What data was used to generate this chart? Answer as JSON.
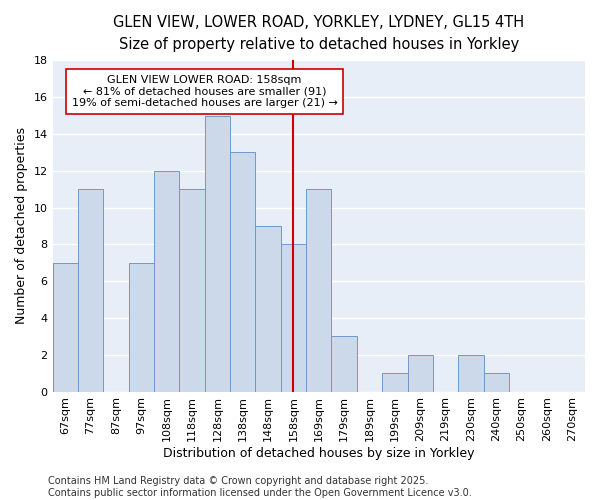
{
  "title_line1": "GLEN VIEW, LOWER ROAD, YORKLEY, LYDNEY, GL15 4TH",
  "title_line2": "Size of property relative to detached houses in Yorkley",
  "xlabel": "Distribution of detached houses by size in Yorkley",
  "ylabel": "Number of detached properties",
  "bar_labels": [
    "67sqm",
    "77sqm",
    "87sqm",
    "97sqm",
    "108sqm",
    "118sqm",
    "128sqm",
    "138sqm",
    "148sqm",
    "158sqm",
    "169sqm",
    "179sqm",
    "189sqm",
    "199sqm",
    "209sqm",
    "219sqm",
    "230sqm",
    "240sqm",
    "250sqm",
    "260sqm",
    "270sqm"
  ],
  "bar_values": [
    7,
    11,
    0,
    7,
    12,
    11,
    15,
    13,
    9,
    8,
    11,
    3,
    0,
    1,
    2,
    0,
    2,
    1,
    0,
    0,
    0
  ],
  "bar_color": "#ccd9ea",
  "bar_edge_color": "#7098c8",
  "highlight_index": 9,
  "vline_color": "#cc0000",
  "annotation_text": "GLEN VIEW LOWER ROAD: 158sqm\n← 81% of detached houses are smaller (91)\n19% of semi-detached houses are larger (21) →",
  "annotation_box_color": "#ffffff",
  "annotation_box_edge": "#cc0000",
  "ylim": [
    0,
    18
  ],
  "yticks": [
    0,
    2,
    4,
    6,
    8,
    10,
    12,
    14,
    16,
    18
  ],
  "background_color": "#ffffff",
  "plot_bg_color": "#e8eef7",
  "grid_color": "#ffffff",
  "footer_text": "Contains HM Land Registry data © Crown copyright and database right 2025.\nContains public sector information licensed under the Open Government Licence v3.0.",
  "title_fontsize": 10.5,
  "subtitle_fontsize": 9.5,
  "axis_label_fontsize": 9,
  "tick_fontsize": 8,
  "annotation_fontsize": 8,
  "footer_fontsize": 7
}
